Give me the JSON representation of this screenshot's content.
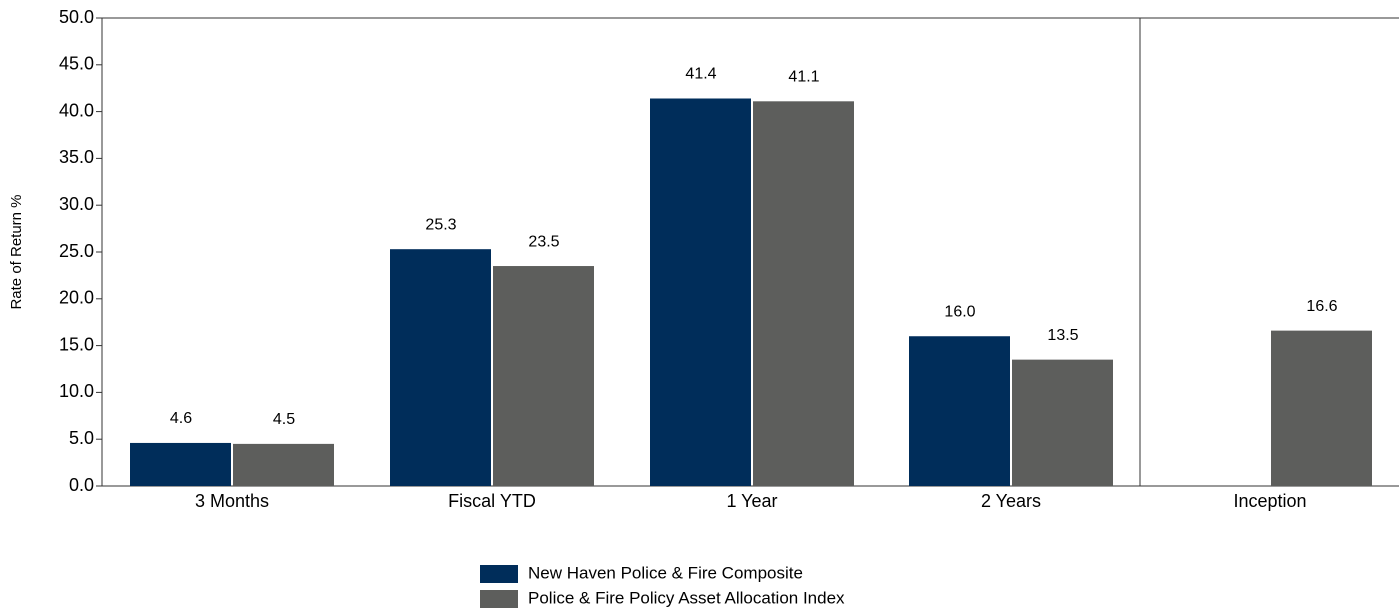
{
  "chart_data": {
    "type": "bar",
    "y_label": "Rate of Return %",
    "categories": [
      "3 Months",
      "Fiscal YTD",
      "1 Year",
      "2 Years",
      "Inception"
    ],
    "series": [
      {
        "name": "New Haven Police & Fire Composite",
        "color": "#002d5a",
        "values": [
          4.6,
          25.3,
          41.4,
          16.0,
          null
        ],
        "value_labels": [
          "4.6",
          "25.3",
          "41.4",
          "16.0",
          null
        ]
      },
      {
        "name": "Police & Fire Policy Asset Allocation Index",
        "color": "#5d5e5c",
        "values": [
          4.5,
          23.5,
          41.1,
          13.5,
          16.6
        ],
        "value_labels": [
          "4.5",
          "23.5",
          "41.1",
          "13.5",
          "16.6"
        ]
      }
    ],
    "ylim": [
      0,
      50
    ],
    "yticks": [
      {
        "value": 0,
        "label": "0.0"
      },
      {
        "value": 5,
        "label": "5.0"
      },
      {
        "value": 10,
        "label": "10.0"
      },
      {
        "value": 15,
        "label": "15.0"
      },
      {
        "value": 20,
        "label": "20.0"
      },
      {
        "value": 25,
        "label": "25.0"
      },
      {
        "value": 30,
        "label": "30.0"
      },
      {
        "value": 35,
        "label": "35.0"
      },
      {
        "value": 40,
        "label": "40.0"
      },
      {
        "value": 45,
        "label": "45.0"
      },
      {
        "value": 50,
        "label": "50.0"
      }
    ],
    "grid": false
  }
}
